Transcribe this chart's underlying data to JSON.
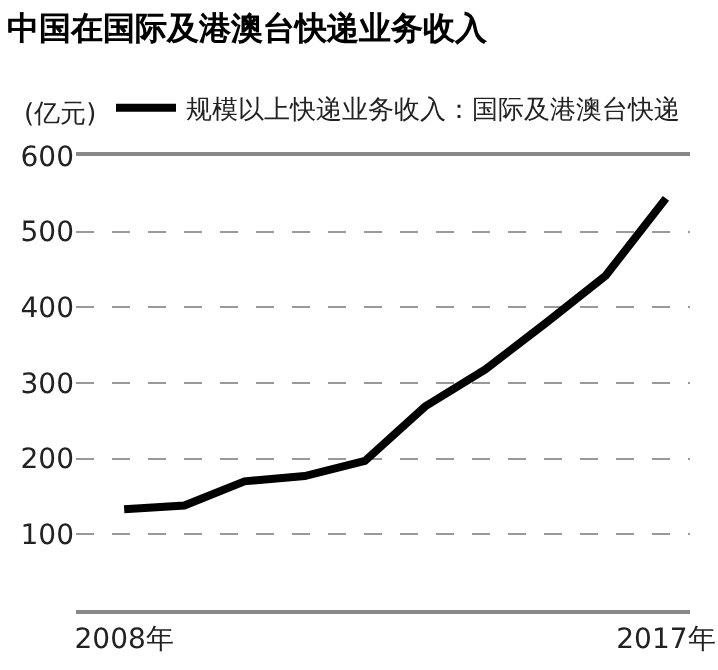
{
  "chart_data": {
    "type": "line",
    "title": "中国在国际及港澳台快递业务收入",
    "ylabel": "(亿元)",
    "categories": [
      "2008年",
      null,
      null,
      null,
      null,
      null,
      null,
      null,
      null,
      "2017年"
    ],
    "series": [
      {
        "name": "规模以上快递业务收入：国际及港澳台快递",
        "color": "#000000",
        "values": [
          133,
          138,
          170,
          177,
          197,
          269,
          318,
          379,
          442,
          544
        ]
      }
    ],
    "ylim": [
      0,
      600
    ],
    "yticks": [
      100,
      200,
      300,
      400,
      500,
      600
    ],
    "grid": "y",
    "line_style": "solid",
    "marker": "none",
    "legend": "top"
  }
}
